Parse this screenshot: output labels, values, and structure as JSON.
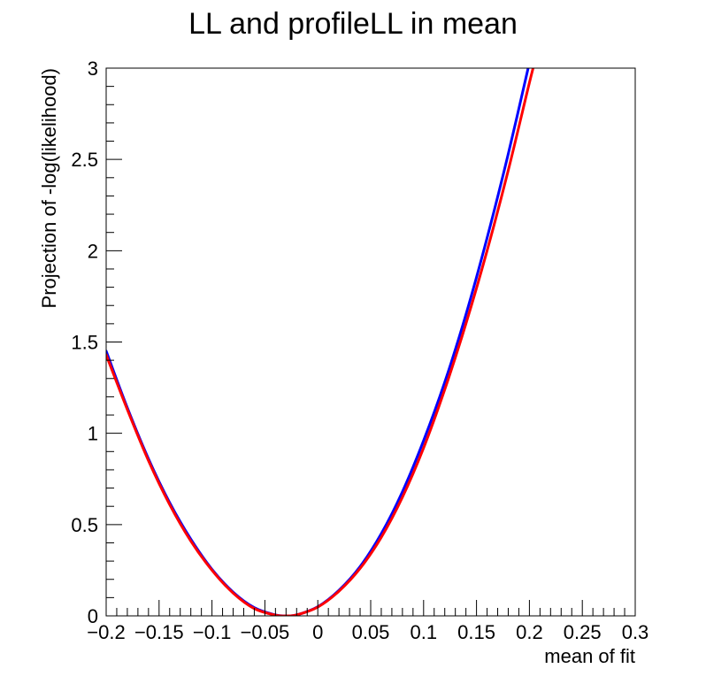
{
  "chart_data": {
    "type": "line",
    "title": "LL and profileLL in mean",
    "xlabel": "mean of fit",
    "ylabel": "Projection of -log(likelihood)",
    "xlim": [
      -0.2,
      0.3
    ],
    "ylim": [
      0,
      3
    ],
    "grid": false,
    "xticks": [
      -0.2,
      -0.15,
      -0.1,
      -0.05,
      0,
      0.05,
      0.1,
      0.15,
      0.2,
      0.25,
      0.3
    ],
    "xtick_labels": [
      "−0.2",
      "−0.15",
      "−0.1",
      "−0.05",
      "0",
      "0.05",
      "0.1",
      "0.15",
      "0.2",
      "0.25",
      "0.3"
    ],
    "yticks": [
      0,
      0.5,
      1,
      1.5,
      2,
      2.5,
      3
    ],
    "ytick_labels": [
      "0",
      "0.5",
      "1",
      "1.5",
      "2",
      "2.5",
      "3"
    ],
    "series": [
      {
        "color": "#0000ff",
        "x": [
          -0.2,
          -0.18,
          -0.16,
          -0.14,
          -0.12,
          -0.1,
          -0.08,
          -0.06,
          -0.04,
          -0.03,
          -0.02,
          0,
          0.02,
          0.04,
          0.06,
          0.08,
          0.1,
          0.12,
          0.14,
          0.16,
          0.18,
          0.2,
          0.204
        ],
        "y": [
          1.45,
          1.14,
          0.86,
          0.62,
          0.42,
          0.255,
          0.13,
          0.045,
          0.005,
          0,
          0.005,
          0.05,
          0.14,
          0.27,
          0.45,
          0.68,
          0.96,
          1.28,
          1.65,
          2.07,
          2.53,
          3.03,
          3.13
        ]
      },
      {
        "color": "#ff0000",
        "x": [
          -0.2,
          -0.18,
          -0.16,
          -0.14,
          -0.12,
          -0.1,
          -0.08,
          -0.06,
          -0.04,
          -0.03,
          -0.02,
          0,
          0.02,
          0.04,
          0.06,
          0.08,
          0.1,
          0.12,
          0.14,
          0.16,
          0.18,
          0.2,
          0.208
        ],
        "y": [
          1.43,
          1.13,
          0.85,
          0.61,
          0.41,
          0.25,
          0.125,
          0.04,
          0.004,
          0,
          0.005,
          0.048,
          0.135,
          0.26,
          0.43,
          0.65,
          0.92,
          1.24,
          1.6,
          2.0,
          2.44,
          2.92,
          3.1
        ]
      }
    ]
  }
}
